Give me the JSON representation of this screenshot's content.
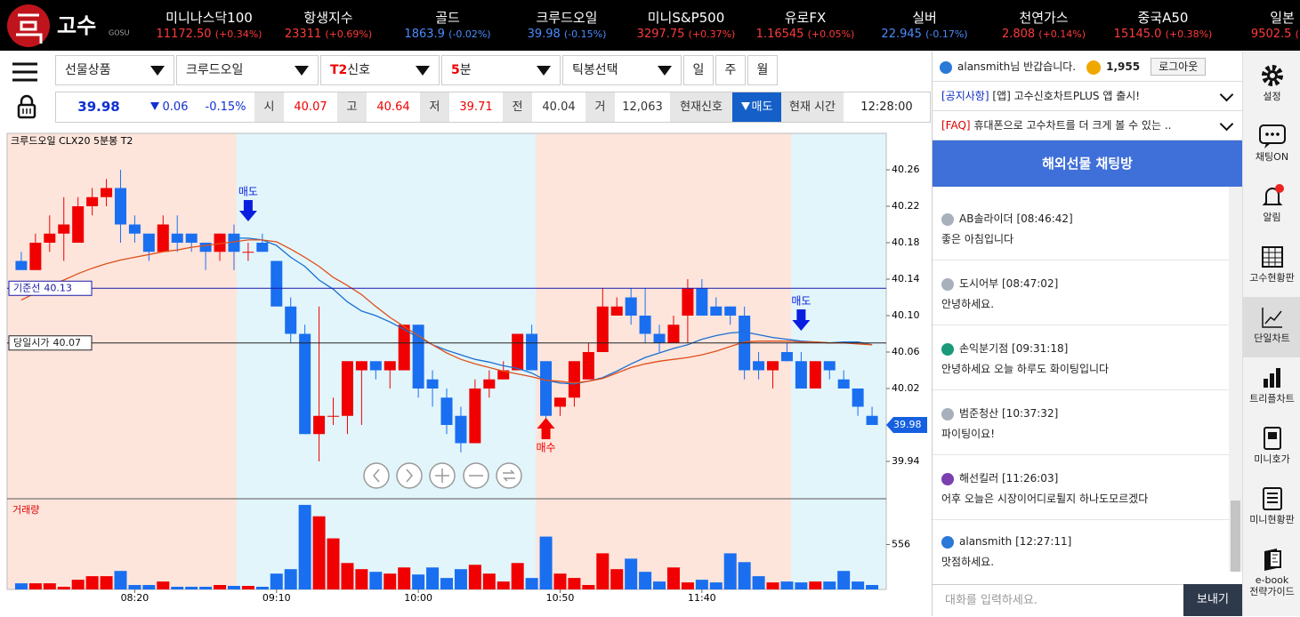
{
  "header": {
    "logo": "고수",
    "logo_sub": "GOSU",
    "tickers": [
      {
        "name": "미니나스닥100",
        "price": "11172.50",
        "change": "(+0.34%)",
        "color": "#ff3b3b"
      },
      {
        "name": "항생지수",
        "price": "23311",
        "change": "(+0.69%)",
        "color": "#ff3b3b"
      },
      {
        "name": "골드",
        "price": "1863.9",
        "change": "(-0.02%)",
        "color": "#4a8cff"
      },
      {
        "name": "크루드오일",
        "price": "39.98",
        "change": "(-0.15%)",
        "color": "#4a8cff"
      },
      {
        "name": "미니S&P500",
        "price": "3297.75",
        "change": "(+0.37%)",
        "color": "#ff3b3b"
      },
      {
        "name": "유로FX",
        "price": "1.16545",
        "change": "(+0.05%)",
        "color": "#ff3b3b"
      },
      {
        "name": "실버",
        "price": "22.945",
        "change": "(-0.17%)",
        "color": "#4a8cff"
      },
      {
        "name": "천연가스",
        "price": "2.808",
        "change": "(+0.14%)",
        "color": "#ff3b3b"
      },
      {
        "name": "중국A50",
        "price": "15145.0",
        "change": "(+0.38%)",
        "color": "#ff3b3b"
      },
      {
        "name": "일본",
        "price": "9502.5",
        "change": "(+0",
        "color": "#ff3b3b"
      }
    ]
  },
  "toolbar": {
    "selects": [
      {
        "prefix": "",
        "label": "선물상품"
      },
      {
        "prefix": "",
        "label": "크루드오일"
      },
      {
        "prefix": "T2",
        "label": "신호"
      },
      {
        "prefix": "5",
        "label": "분"
      },
      {
        "prefix": "",
        "label": "틱봉선택"
      }
    ],
    "buttons": [
      "일",
      "주",
      "월"
    ]
  },
  "quote": {
    "price": "39.98",
    "change": "0.06",
    "change_pct": "-0.15%",
    "fields": [
      {
        "key": "시",
        "value": "40.07"
      },
      {
        "key": "고",
        "value": "40.64"
      },
      {
        "key": "저",
        "value": "39.71"
      },
      {
        "key": "전",
        "value": "40.04"
      },
      {
        "key": "거",
        "value": "12,063"
      }
    ],
    "signal_label": "현재신호",
    "signal": "매도",
    "time_label": "현재 시간",
    "time": "12:28:00"
  },
  "chart_data": {
    "type": "candlestick",
    "title": "크루드오일",
    "code": "CLX20",
    "interval": "5분봉",
    "signal_type": "T2",
    "x": [
      460,
      465,
      470,
      475,
      480,
      485,
      490,
      495,
      500,
      505,
      510,
      515,
      520,
      525,
      530,
      535,
      540,
      545,
      550,
      555,
      560,
      565,
      570,
      575,
      580,
      585,
      590,
      595,
      600,
      605,
      610,
      615,
      620,
      625,
      630,
      635,
      640,
      645,
      650,
      655,
      660,
      665,
      670,
      675,
      680,
      685,
      690,
      695,
      700,
      705,
      710,
      715,
      720,
      725,
      730,
      735,
      740,
      745,
      750,
      755,
      760
    ],
    "open": [
      40.16,
      40.15,
      40.18,
      40.19,
      40.18,
      40.22,
      40.23,
      40.24,
      40.2,
      40.19,
      40.17,
      40.19,
      40.19,
      40.18,
      40.17,
      40.19,
      40.17,
      40.18,
      40.16,
      40.11,
      40.08,
      39.97,
      39.99,
      39.99,
      40.04,
      40.05,
      40.04,
      40.04,
      40.09,
      40.03,
      40.01,
      39.99,
      39.96,
      40.02,
      40.03,
      40.04,
      40.08,
      40.05,
      40.0,
      40.01,
      40.03,
      40.06,
      40.1,
      40.12,
      40.1,
      40.08,
      40.07,
      40.1,
      40.13,
      40.11,
      40.11,
      40.1,
      40.05,
      40.04,
      40.06,
      40.05,
      40.02,
      40.05,
      40.03,
      40.02,
      39.99
    ],
    "high": [
      40.17,
      40.19,
      40.21,
      40.23,
      40.23,
      40.24,
      40.25,
      40.26,
      40.21,
      40.19,
      40.21,
      40.21,
      40.19,
      40.18,
      40.19,
      40.2,
      40.18,
      40.19,
      40.16,
      40.12,
      40.09,
      40.11,
      40.01,
      40.05,
      40.05,
      40.05,
      40.05,
      40.09,
      40.09,
      40.04,
      40.02,
      40.0,
      40.03,
      40.04,
      40.05,
      40.08,
      40.09,
      40.05,
      40.01,
      40.05,
      40.07,
      40.13,
      40.12,
      40.13,
      40.13,
      40.09,
      40.1,
      40.14,
      40.14,
      40.12,
      40.11,
      40.11,
      40.06,
      40.05,
      40.07,
      40.06,
      40.05,
      40.05,
      40.04,
      40.02,
      40.0
    ],
    "low": [
      40.15,
      40.15,
      40.17,
      40.16,
      40.18,
      40.21,
      40.22,
      40.18,
      40.18,
      40.16,
      40.17,
      40.17,
      40.17,
      40.15,
      40.16,
      40.15,
      40.16,
      40.17,
      40.11,
      40.07,
      39.97,
      39.94,
      39.98,
      39.97,
      39.98,
      40.03,
      40.02,
      40.04,
      40.01,
      40.0,
      39.97,
      39.95,
      39.96,
      40.01,
      40.03,
      40.04,
      40.04,
      39.98,
      39.99,
      40.0,
      40.03,
      40.06,
      40.1,
      40.09,
      40.07,
      40.06,
      40.07,
      40.07,
      40.1,
      40.1,
      40.09,
      40.03,
      40.03,
      40.02,
      40.05,
      40.02,
      40.02,
      40.03,
      40.02,
      39.99,
      39.98
    ],
    "close": [
      40.15,
      40.18,
      40.19,
      40.2,
      40.22,
      40.23,
      40.24,
      40.2,
      40.19,
      40.17,
      40.2,
      40.18,
      40.18,
      40.17,
      40.19,
      40.17,
      40.17,
      40.17,
      40.11,
      40.08,
      39.97,
      39.99,
      39.99,
      40.05,
      40.05,
      40.04,
      40.05,
      40.09,
      40.02,
      40.02,
      39.98,
      39.96,
      40.02,
      40.03,
      40.04,
      40.08,
      40.04,
      39.99,
      40.01,
      40.05,
      40.06,
      40.11,
      40.11,
      40.1,
      40.08,
      40.07,
      40.09,
      40.13,
      40.1,
      40.1,
      40.1,
      40.04,
      40.04,
      40.05,
      40.05,
      40.02,
      40.05,
      40.04,
      40.02,
      40.0,
      39.98
    ],
    "up_color": "#f00000",
    "down_color": "#1a6ff0",
    "moving_averages": [
      {
        "color": "#1a6fd0",
        "values": [
          null,
          null,
          null,
          null,
          null,
          null,
          null,
          null,
          null,
          null,
          null,
          null,
          null,
          null,
          null,
          40.185,
          40.185,
          40.183,
          40.177,
          40.164,
          40.154,
          40.139,
          40.129,
          40.115,
          40.105,
          40.1,
          40.093,
          40.085,
          40.076,
          40.068,
          40.062,
          40.057,
          40.052,
          40.049,
          40.045,
          40.042,
          40.037,
          40.029,
          40.026,
          40.025,
          40.028,
          40.032,
          40.039,
          40.047,
          40.054,
          40.059,
          40.064,
          40.068,
          40.074,
          40.078,
          40.081,
          40.082,
          40.079,
          40.076,
          40.074,
          40.072,
          40.071,
          40.07,
          40.071,
          40.071,
          40.068
        ]
      },
      {
        "color": "#e0501a",
        "values": [
          40.117,
          40.125,
          40.133,
          40.139,
          40.146,
          40.152,
          40.157,
          40.161,
          40.164,
          40.167,
          40.17,
          40.172,
          40.175,
          40.177,
          40.179,
          40.181,
          40.183,
          40.183,
          40.181,
          40.173,
          40.164,
          40.154,
          40.142,
          40.133,
          40.123,
          40.11,
          40.098,
          40.088,
          40.078,
          40.068,
          40.059,
          40.052,
          40.047,
          40.043,
          40.039,
          40.036,
          40.033,
          40.029,
          40.028,
          40.026,
          40.028,
          40.031,
          40.037,
          40.043,
          40.047,
          40.05,
          40.052,
          40.054,
          40.057,
          40.061,
          40.066,
          40.071,
          40.072,
          40.072,
          40.072,
          40.071,
          40.071,
          40.07,
          40.07,
          40.069,
          40.068
        ]
      }
    ],
    "lines": [
      {
        "label": "기준선",
        "value": 40.13,
        "color": "#1a1aa8"
      },
      {
        "label": "당일시가",
        "value": 40.07,
        "color": "#222222"
      }
    ],
    "current_price": 39.98,
    "signals": [
      {
        "label": "매도",
        "x": 540,
        "arrow": "down",
        "color": "#0a1ee0"
      },
      {
        "label": "매수",
        "x": 645,
        "arrow": "up",
        "color": "#f00000"
      },
      {
        "label": "매도",
        "x": 735,
        "arrow": "down",
        "color": "#0a1ee0"
      }
    ],
    "xlim": [
      455,
      765
    ],
    "xticks": [
      {
        "value": 500,
        "label": "08:20"
      },
      {
        "value": 550,
        "label": "09:10"
      },
      {
        "value": 600,
        "label": "10:00"
      },
      {
        "value": 650,
        "label": "10:50"
      },
      {
        "value": 700,
        "label": "11:40"
      }
    ],
    "ylim": [
      39.9,
      40.3
    ],
    "yticks": [
      39.94,
      40.02,
      40.06,
      {
        "value": 40.1,
        "label": "40.10"
      },
      40.14,
      40.18,
      40.22,
      40.26
    ],
    "volume": {
      "label": "거래량",
      "values": [
        76,
        76,
        76,
        33,
        120,
        164,
        164,
        229,
        55,
        55,
        98,
        33,
        33,
        33,
        55,
        44,
        44,
        33,
        196,
        251,
        1046,
        905,
        632,
        327,
        251,
        218,
        196,
        272,
        185,
        272,
        142,
        251,
        305,
        196,
        98,
        327,
        142,
        654,
        196,
        142,
        55,
        447,
        251,
        381,
        218,
        98,
        272,
        87,
        120,
        87,
        447,
        338,
        164,
        87,
        98,
        87,
        98,
        98,
        229,
        98,
        55
      ],
      "ylim": [
        0,
        1100
      ],
      "yticks": [
        556
      ]
    }
  },
  "chat": {
    "user": "alansmith님 반갑습니다.",
    "points": "1,955",
    "logout": "로그아웃",
    "notices": [
      {
        "tag": "[공지사항]",
        "text": "[앱] 고수신호차트PLUS 앱 출시!"
      },
      {
        "tag": "[FAQ]",
        "text": "휴대폰으로 고수차트를 더 크게 볼 수 있는 .."
      }
    ],
    "title": "해외선물 채팅방",
    "messages": [
      {
        "name": "AB솔라이더",
        "time": "[08:46:42]",
        "text": "좋은 아침입니다",
        "badge_color": "#a8b0bc"
      },
      {
        "name": "도시어부",
        "time": "[08:47:02]",
        "text": "안녕하세요.",
        "badge_color": "#a8b0bc"
      },
      {
        "name": "손익분기점",
        "time": "[09:31:18]",
        "text": "안녕하세요 오늘 하루도 화이팅입니다",
        "badge_color": "#1b9a7a"
      },
      {
        "name": "범준청산",
        "time": "[10:37:32]",
        "text": "파이팅이요!",
        "badge_color": "#a8b0bc"
      },
      {
        "name": "해선킬러",
        "time": "[11:26:03]",
        "text": "어후 오늘은 시장이어디로튈지 하나도모르겠다",
        "badge_color": "#7b3fb0"
      },
      {
        "name": "alansmith",
        "time": "[12:27:11]",
        "text": "맛점하세요.",
        "badge_color": "#2a78d8"
      }
    ],
    "placeholder": "대화를 입력하세요.",
    "send": "보내기"
  },
  "sidebar": {
    "active_index": 4,
    "items": [
      [
        "설정"
      ],
      [
        "채팅ON"
      ],
      [
        "알림"
      ],
      [
        "고수현황판"
      ],
      [
        "단일차트"
      ],
      [
        "트리플차트"
      ],
      [
        "미니호가"
      ],
      [
        "미니현황판"
      ],
      [
        "e-book",
        "전략가이드"
      ]
    ]
  }
}
